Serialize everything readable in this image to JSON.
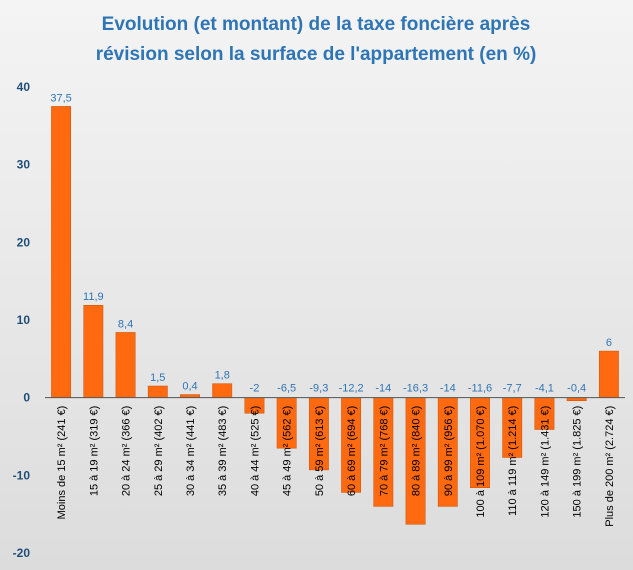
{
  "chart_data": {
    "type": "bar",
    "title_lines": [
      "Evolution (et montant) de la taxe foncière après",
      "révision selon la surface de l'appartement (en %)"
    ],
    "xlabel": "",
    "ylabel": "",
    "ylim": [
      -20,
      40
    ],
    "yticks": [
      -20,
      -10,
      0,
      10,
      20,
      30,
      40
    ],
    "ytick_labels": [
      "-20",
      "-10",
      "0",
      "10",
      "20",
      "30",
      "40"
    ],
    "grid": false,
    "legend": "none",
    "categories": [
      "Moins de 15 m² (241 €)",
      "15 à 19 m² (319 €)",
      "20 à 24 m² (366 €)",
      "25 à 29 m² (402 €)",
      "30 à 34 m² (441 €)",
      "35 à 39 m² (483 €)",
      "40 à 44 m² (525 €)",
      "45 à 49 m² (562 €)",
      "50 à 59 m² (613 €)",
      "60 à 69 m² (694 €)",
      "70 à 79 m² (768 €)",
      "80 à 89 m² (840 €)",
      "90 à 99 m² (956 €)",
      "100 à 109 m² (1.070 €)",
      "110 à 119 m² (1.214 €)",
      "120 à 149 m² (1.431 €)",
      "150 à 199 m² (1.825 €)",
      "Plus de 200 m² (2.724 €)"
    ],
    "values": [
      37.5,
      11.9,
      8.4,
      1.5,
      0.4,
      1.8,
      -2,
      -6.5,
      -9.3,
      -12.2,
      -14,
      -16.3,
      -14,
      -11.6,
      -7.7,
      -4.1,
      -0.4,
      6
    ],
    "value_labels": [
      "37,5",
      "11,9",
      "8,4",
      "1,5",
      "0,4",
      "1,8",
      "-2",
      "-6,5",
      "-9,3",
      "-12,2",
      "-14",
      "-16,3",
      "-14",
      "-11,6",
      "-7,7",
      "-4,1",
      "-0,4",
      "6"
    ]
  },
  "colors": {
    "title": "#2e75b6",
    "bar": "#ff6a10",
    "bar_border": "#c85000",
    "ytick": "#1f4e79",
    "data_label": "#2e75b6",
    "xtick": "#000000",
    "axis": "#555555"
  }
}
